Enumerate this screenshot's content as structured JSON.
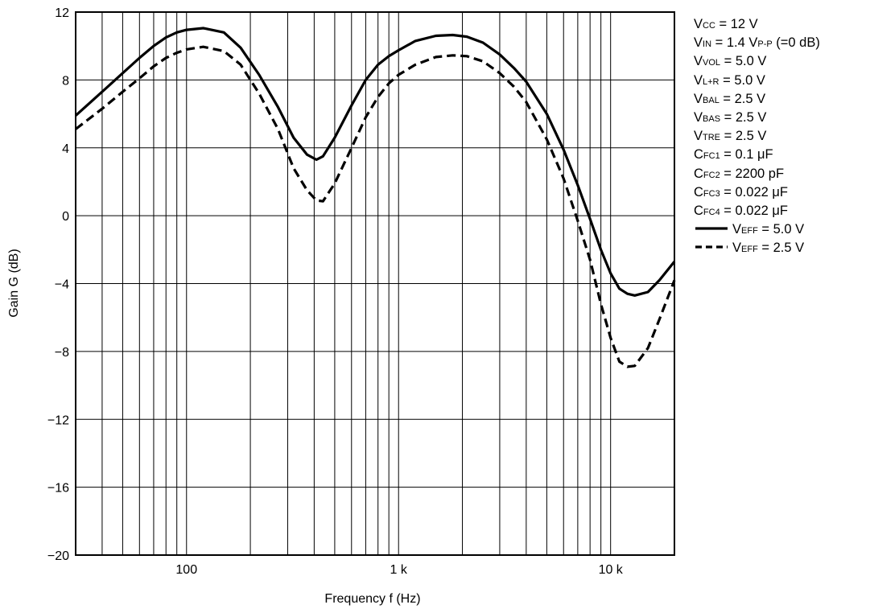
{
  "chart_data": {
    "type": "line",
    "xlabel": "Frequency f (Hz)",
    "ylabel": "Gain G (dB)",
    "x_scale": "log",
    "xlim": [
      30,
      20000
    ],
    "ylim": [
      -20,
      12
    ],
    "grid": true,
    "x_tick_values": [
      100,
      1000,
      10000
    ],
    "x_tick_labels": [
      "100",
      "1 k",
      "10 k"
    ],
    "y_ticks": [
      12,
      8,
      4,
      0,
      -4,
      -8,
      -12,
      -16,
      -20
    ],
    "y_tick_labels": [
      "12",
      "8",
      "4",
      "0",
      "−4",
      "−8",
      "−12",
      "−16",
      "−20"
    ],
    "legend_position": "right",
    "conditions": [
      {
        "main": "V",
        "sub": "CC",
        "rest": " = 12 V"
      },
      {
        "main": "V",
        "sub": "IN",
        "rest": " = 1.4 V",
        "sub2": "P-P",
        "rest2": " (=0 dB)"
      },
      {
        "main": "V",
        "sub": "VOL",
        "rest": " = 5.0 V"
      },
      {
        "main": "V",
        "sub": "L+R",
        "rest": " = 5.0 V"
      },
      {
        "main": "V",
        "sub": "BAL",
        "rest": " = 2.5 V"
      },
      {
        "main": "V",
        "sub": "BAS",
        "rest": " = 2.5 V"
      },
      {
        "main": "V",
        "sub": "TRE",
        "rest": " = 2.5 V"
      },
      {
        "main": "C",
        "sub": "FC1",
        "rest": " = 0.1 μF"
      },
      {
        "main": "C",
        "sub": "FC2",
        "rest": " = 2200 pF"
      },
      {
        "main": "C",
        "sub": "FC3",
        "rest": " = 0.022 μF"
      },
      {
        "main": "C",
        "sub": "FC4",
        "rest": " = 0.022 μF"
      }
    ],
    "series": [
      {
        "name": "VEFF = 5.0 V",
        "legend": {
          "main": "V",
          "sub": "EFF",
          "rest": " = 5.0 V"
        },
        "style": "solid",
        "points": [
          [
            30,
            5.9
          ],
          [
            40,
            7.3
          ],
          [
            50,
            8.4
          ],
          [
            60,
            9.3
          ],
          [
            70,
            10.0
          ],
          [
            80,
            10.5
          ],
          [
            90,
            10.8
          ],
          [
            100,
            10.95
          ],
          [
            120,
            11.05
          ],
          [
            150,
            10.8
          ],
          [
            180,
            9.9
          ],
          [
            220,
            8.3
          ],
          [
            270,
            6.4
          ],
          [
            320,
            4.6
          ],
          [
            370,
            3.6
          ],
          [
            410,
            3.3
          ],
          [
            440,
            3.5
          ],
          [
            500,
            4.6
          ],
          [
            600,
            6.5
          ],
          [
            700,
            8.0
          ],
          [
            800,
            8.9
          ],
          [
            900,
            9.4
          ],
          [
            1000,
            9.75
          ],
          [
            1200,
            10.3
          ],
          [
            1500,
            10.6
          ],
          [
            1800,
            10.65
          ],
          [
            2100,
            10.55
          ],
          [
            2500,
            10.2
          ],
          [
            3000,
            9.5
          ],
          [
            3500,
            8.7
          ],
          [
            4000,
            7.9
          ],
          [
            5000,
            6.0
          ],
          [
            6000,
            3.9
          ],
          [
            7000,
            1.8
          ],
          [
            8000,
            -0.2
          ],
          [
            9000,
            -2.0
          ],
          [
            10000,
            -3.4
          ],
          [
            11000,
            -4.3
          ],
          [
            12000,
            -4.6
          ],
          [
            13000,
            -4.7
          ],
          [
            15000,
            -4.5
          ],
          [
            17000,
            -3.8
          ],
          [
            20000,
            -2.7
          ]
        ]
      },
      {
        "name": "VEFF = 2.5 V",
        "legend": {
          "main": "V",
          "sub": "EFF",
          "rest": " = 2.5 V"
        },
        "style": "dashed",
        "points": [
          [
            30,
            5.1
          ],
          [
            40,
            6.3
          ],
          [
            50,
            7.3
          ],
          [
            60,
            8.1
          ],
          [
            70,
            8.8
          ],
          [
            80,
            9.3
          ],
          [
            90,
            9.6
          ],
          [
            100,
            9.8
          ],
          [
            120,
            9.95
          ],
          [
            150,
            9.7
          ],
          [
            180,
            8.9
          ],
          [
            220,
            7.2
          ],
          [
            270,
            5.1
          ],
          [
            320,
            2.8
          ],
          [
            370,
            1.5
          ],
          [
            410,
            0.9
          ],
          [
            440,
            0.85
          ],
          [
            500,
            1.9
          ],
          [
            600,
            4.0
          ],
          [
            700,
            5.8
          ],
          [
            800,
            7.0
          ],
          [
            900,
            7.8
          ],
          [
            1000,
            8.3
          ],
          [
            1200,
            8.9
          ],
          [
            1500,
            9.35
          ],
          [
            1800,
            9.45
          ],
          [
            2100,
            9.4
          ],
          [
            2500,
            9.1
          ],
          [
            3000,
            8.4
          ],
          [
            3500,
            7.6
          ],
          [
            4000,
            6.7
          ],
          [
            5000,
            4.5
          ],
          [
            6000,
            2.2
          ],
          [
            7000,
            -0.3
          ],
          [
            8000,
            -2.6
          ],
          [
            9000,
            -5.2
          ],
          [
            10000,
            -7.2
          ],
          [
            11000,
            -8.6
          ],
          [
            12000,
            -8.9
          ],
          [
            13000,
            -8.85
          ],
          [
            15000,
            -7.8
          ],
          [
            17000,
            -6.1
          ],
          [
            20000,
            -3.8
          ]
        ]
      }
    ]
  }
}
